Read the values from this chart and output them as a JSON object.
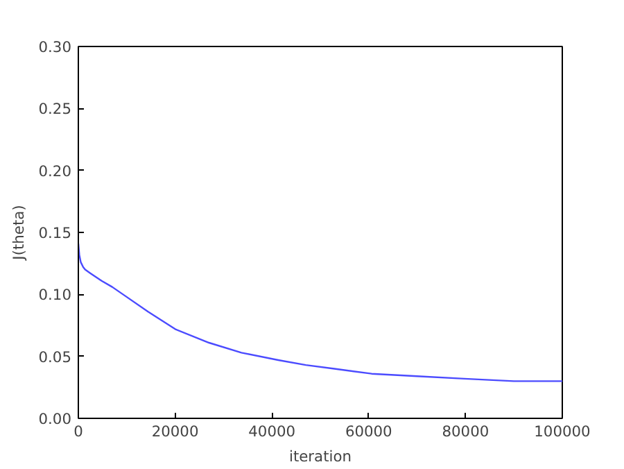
{
  "chart_data": {
    "type": "line",
    "xlabel": "iteration",
    "ylabel": "J(theta)",
    "x": [
      0,
      200,
      500,
      1000,
      1400,
      2500,
      4800,
      7000,
      9600,
      14400,
      20000,
      27000,
      33700,
      41300,
      47000,
      52900,
      60600,
      70000,
      79800,
      90000,
      100000
    ],
    "series": [
      {
        "color": "#4b4bff",
        "values": [
          0.141,
          0.132,
          0.126,
          0.122,
          0.12,
          0.117,
          0.111,
          0.106,
          0.099,
          0.086,
          0.072,
          0.061,
          0.053,
          0.047,
          0.043,
          0.04,
          0.036,
          0.034,
          0.032,
          0.03,
          0.03
        ]
      }
    ],
    "xlim": [
      0,
      100000
    ],
    "ylim": [
      0,
      0.3
    ],
    "xticks": [
      0,
      20000,
      40000,
      60000,
      80000,
      100000
    ],
    "yticks": [
      {
        "value": 0,
        "label": "0.00"
      },
      {
        "value": 0.05,
        "label": "0.05"
      },
      {
        "value": 0.1,
        "label": "0.10"
      },
      {
        "value": 0.15,
        "label": "0.15"
      },
      {
        "value": 0.2,
        "label": "0.20"
      },
      {
        "value": 0.25,
        "label": "0.25"
      },
      {
        "value": 0.3,
        "label": "0.30"
      }
    ],
    "grid": false,
    "line_style": "solid"
  }
}
